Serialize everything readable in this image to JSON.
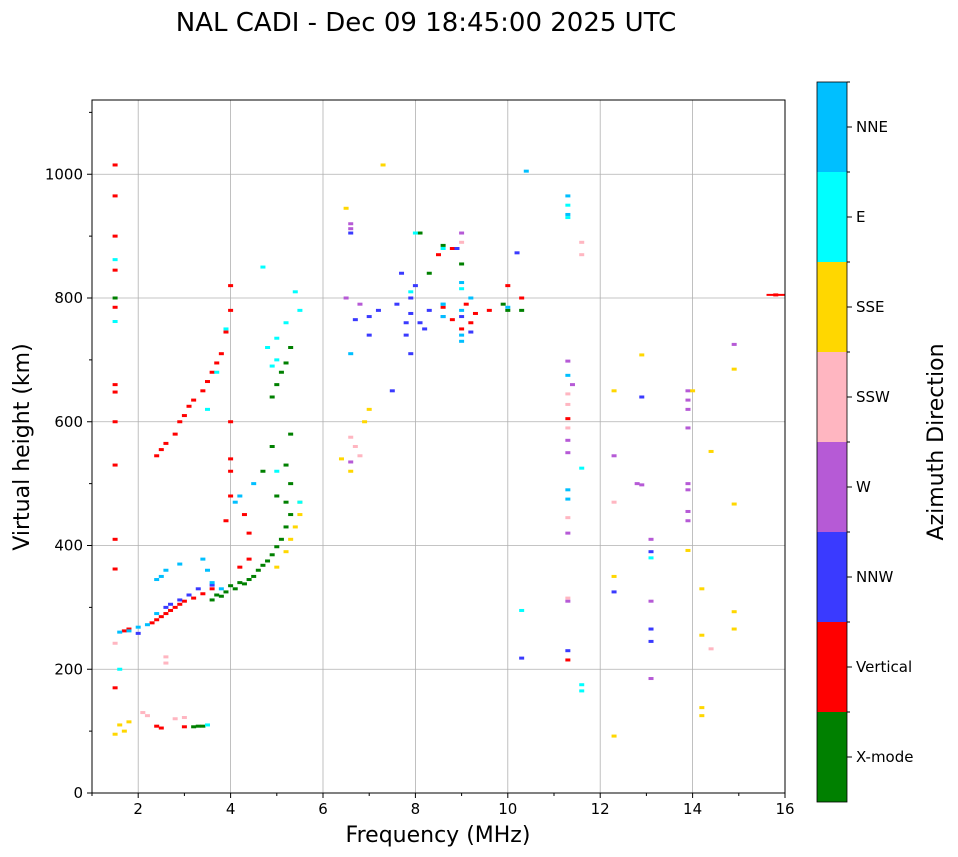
{
  "chart_data": {
    "type": "scatter",
    "title": "NAL CADI - Dec 09 18:45:00 2025 UTC",
    "xlabel": "Frequency (MHz)",
    "ylabel": "Virtual height (km)",
    "xlim": [
      1,
      16
    ],
    "ylim": [
      0,
      1120
    ],
    "xticks": [
      2,
      4,
      6,
      8,
      10,
      12,
      14,
      16
    ],
    "yticks": [
      0,
      200,
      400,
      600,
      800,
      1000
    ],
    "grid": true,
    "colorbar": {
      "label": "Azimuth Direction",
      "categories": [
        {
          "name": "X-mode",
          "color": "#008000"
        },
        {
          "name": "Vertical",
          "color": "#ff0000"
        },
        {
          "name": "NNW",
          "color": "#3a3aff"
        },
        {
          "name": "W",
          "color": "#b65ad6"
        },
        {
          "name": "SSW",
          "color": "#ffb6c1"
        },
        {
          "name": "SSE",
          "color": "#ffd700"
        },
        {
          "name": "E",
          "color": "#00ffff"
        },
        {
          "name": "NNE",
          "color": "#00bfff"
        }
      ]
    },
    "series": [
      {
        "name": "X-mode",
        "points": [
          [
            3.2,
            107
          ],
          [
            3.3,
            108
          ],
          [
            3.4,
            108
          ],
          [
            3.6,
            312
          ],
          [
            3.7,
            320
          ],
          [
            3.8,
            318
          ],
          [
            3.9,
            325
          ],
          [
            4.0,
            335
          ],
          [
            4.1,
            330
          ],
          [
            4.2,
            340
          ],
          [
            4.3,
            338
          ],
          [
            4.4,
            345
          ],
          [
            4.5,
            350
          ],
          [
            4.6,
            360
          ],
          [
            4.7,
            368
          ],
          [
            4.8,
            375
          ],
          [
            4.9,
            385
          ],
          [
            5.0,
            398
          ],
          [
            5.1,
            410
          ],
          [
            5.2,
            430
          ],
          [
            5.3,
            450
          ],
          [
            5.2,
            470
          ],
          [
            5.3,
            500
          ],
          [
            4.7,
            520
          ],
          [
            5.0,
            480
          ],
          [
            5.2,
            530
          ],
          [
            4.9,
            560
          ],
          [
            5.3,
            580
          ],
          [
            4.9,
            640
          ],
          [
            5.0,
            660
          ],
          [
            5.1,
            680
          ],
          [
            5.2,
            695
          ],
          [
            5.3,
            720
          ],
          [
            1.5,
            800
          ],
          [
            8.1,
            905
          ],
          [
            8.6,
            885
          ],
          [
            9.0,
            855
          ],
          [
            10.0,
            780
          ],
          [
            10.3,
            780
          ],
          [
            9.9,
            790
          ],
          [
            8.3,
            840
          ]
        ]
      },
      {
        "name": "Vertical",
        "points": [
          [
            1.5,
            1015
          ],
          [
            1.5,
            965
          ],
          [
            1.5,
            900
          ],
          [
            1.5,
            845
          ],
          [
            1.5,
            785
          ],
          [
            1.5,
            660
          ],
          [
            1.5,
            648
          ],
          [
            1.5,
            600
          ],
          [
            1.5,
            530
          ],
          [
            1.5,
            410
          ],
          [
            1.5,
            362
          ],
          [
            1.5,
            170
          ],
          [
            1.7,
            262
          ],
          [
            1.8,
            265
          ],
          [
            2.3,
            275
          ],
          [
            2.4,
            280
          ],
          [
            2.5,
            285
          ],
          [
            2.6,
            290
          ],
          [
            2.7,
            295
          ],
          [
            2.8,
            300
          ],
          [
            2.9,
            305
          ],
          [
            3.0,
            310
          ],
          [
            3.2,
            315
          ],
          [
            3.4,
            322
          ],
          [
            3.6,
            330
          ],
          [
            2.4,
            545
          ],
          [
            2.5,
            555
          ],
          [
            2.6,
            565
          ],
          [
            2.8,
            580
          ],
          [
            2.9,
            600
          ],
          [
            3.0,
            610
          ],
          [
            3.1,
            625
          ],
          [
            3.2,
            635
          ],
          [
            3.4,
            650
          ],
          [
            3.5,
            665
          ],
          [
            3.6,
            680
          ],
          [
            3.7,
            695
          ],
          [
            3.8,
            710
          ],
          [
            3.9,
            745
          ],
          [
            4.0,
            780
          ],
          [
            4.0,
            820
          ],
          [
            3.9,
            440
          ],
          [
            4.0,
            480
          ],
          [
            4.0,
            520
          ],
          [
            4.0,
            540
          ],
          [
            4.3,
            450
          ],
          [
            4.4,
            420
          ],
          [
            4.0,
            600
          ],
          [
            4.2,
            365
          ],
          [
            4.4,
            378
          ],
          [
            2.5,
            105
          ],
          [
            3.0,
            107
          ],
          [
            2.4,
            108
          ],
          [
            8.6,
            785
          ],
          [
            8.8,
            765
          ],
          [
            9.0,
            750
          ],
          [
            9.1,
            790
          ],
          [
            9.3,
            775
          ],
          [
            9.6,
            780
          ],
          [
            10.0,
            820
          ],
          [
            10.3,
            800
          ],
          [
            9.2,
            760
          ],
          [
            8.5,
            870
          ],
          [
            8.8,
            880
          ],
          [
            11.3,
            605
          ],
          [
            11.3,
            215
          ],
          [
            15.8,
            805
          ]
        ]
      },
      {
        "name": "NNW",
        "points": [
          [
            2.0,
            258
          ],
          [
            2.6,
            300
          ],
          [
            2.7,
            305
          ],
          [
            2.9,
            312
          ],
          [
            3.1,
            320
          ],
          [
            3.3,
            330
          ],
          [
            3.6,
            336
          ],
          [
            7.9,
            775
          ],
          [
            7.8,
            760
          ],
          [
            7.7,
            840
          ],
          [
            7.9,
            800
          ],
          [
            8.0,
            820
          ],
          [
            8.1,
            760
          ],
          [
            7.6,
            790
          ],
          [
            7.8,
            740
          ],
          [
            7.9,
            710
          ],
          [
            8.2,
            750
          ],
          [
            7.2,
            780
          ],
          [
            7.0,
            770
          ],
          [
            6.7,
            765
          ],
          [
            8.3,
            780
          ],
          [
            8.6,
            770
          ],
          [
            9.0,
            770
          ],
          [
            9.2,
            745
          ],
          [
            7.0,
            740
          ],
          [
            8.9,
            880
          ],
          [
            7.5,
            650
          ],
          [
            11.3,
            230
          ],
          [
            12.3,
            325
          ],
          [
            12.9,
            640
          ],
          [
            13.1,
            390
          ],
          [
            13.1,
            265
          ],
          [
            13.1,
            245
          ],
          [
            6.6,
            905
          ],
          [
            10.3,
            218
          ],
          [
            10.2,
            873
          ]
        ]
      },
      {
        "name": "W",
        "points": [
          [
            6.6,
            920
          ],
          [
            6.6,
            912
          ],
          [
            6.5,
            800
          ],
          [
            6.8,
            790
          ],
          [
            6.6,
            535
          ],
          [
            11.3,
            698
          ],
          [
            11.4,
            660
          ],
          [
            11.3,
            570
          ],
          [
            11.3,
            550
          ],
          [
            11.3,
            420
          ],
          [
            11.3,
            310
          ],
          [
            12.3,
            545
          ],
          [
            12.8,
            500
          ],
          [
            12.9,
            498
          ],
          [
            13.1,
            410
          ],
          [
            13.1,
            310
          ],
          [
            13.1,
            185
          ],
          [
            13.9,
            650
          ],
          [
            13.9,
            635
          ],
          [
            13.9,
            620
          ],
          [
            13.9,
            590
          ],
          [
            13.9,
            500
          ],
          [
            13.9,
            490
          ],
          [
            13.9,
            455
          ],
          [
            13.9,
            440
          ],
          [
            14.9,
            725
          ],
          [
            9.0,
            905
          ]
        ]
      },
      {
        "name": "SSW",
        "points": [
          [
            1.5,
            242
          ],
          [
            2.1,
            130
          ],
          [
            2.2,
            125
          ],
          [
            2.6,
            220
          ],
          [
            2.6,
            210
          ],
          [
            2.8,
            120
          ],
          [
            3.0,
            122
          ],
          [
            6.6,
            575
          ],
          [
            6.7,
            560
          ],
          [
            6.8,
            545
          ],
          [
            11.3,
            628
          ],
          [
            11.3,
            645
          ],
          [
            11.3,
            590
          ],
          [
            11.3,
            445
          ],
          [
            11.3,
            315
          ],
          [
            11.6,
            890
          ],
          [
            11.6,
            870
          ],
          [
            12.3,
            470
          ],
          [
            14.4,
            233
          ],
          [
            9.0,
            890
          ]
        ]
      },
      {
        "name": "SSE",
        "points": [
          [
            1.5,
            95
          ],
          [
            1.6,
            110
          ],
          [
            1.7,
            100
          ],
          [
            1.8,
            115
          ],
          [
            5.0,
            365
          ],
          [
            5.2,
            390
          ],
          [
            5.3,
            410
          ],
          [
            5.4,
            430
          ],
          [
            5.5,
            450
          ],
          [
            5.5,
            470
          ],
          [
            6.5,
            945
          ],
          [
            6.4,
            540
          ],
          [
            6.6,
            520
          ],
          [
            6.9,
            600
          ],
          [
            7.0,
            620
          ],
          [
            7.3,
            1015
          ],
          [
            12.3,
            650
          ],
          [
            12.3,
            350
          ],
          [
            12.3,
            92
          ],
          [
            12.9,
            708
          ],
          [
            14.0,
            650
          ],
          [
            14.2,
            330
          ],
          [
            14.2,
            255
          ],
          [
            14.2,
            138
          ],
          [
            14.2,
            125
          ],
          [
            14.4,
            552
          ],
          [
            14.9,
            685
          ],
          [
            14.9,
            467
          ],
          [
            14.9,
            293
          ],
          [
            14.9,
            265
          ],
          [
            13.9,
            392
          ]
        ]
      },
      {
        "name": "E",
        "points": [
          [
            1.5,
            862
          ],
          [
            1.5,
            762
          ],
          [
            1.6,
            200
          ],
          [
            3.5,
            110
          ],
          [
            3.5,
            620
          ],
          [
            3.7,
            680
          ],
          [
            3.9,
            750
          ],
          [
            4.7,
            850
          ],
          [
            4.8,
            720
          ],
          [
            5.0,
            735
          ],
          [
            5.2,
            760
          ],
          [
            5.5,
            780
          ],
          [
            5.4,
            810
          ],
          [
            5.0,
            700
          ],
          [
            4.9,
            690
          ],
          [
            5.5,
            470
          ],
          [
            5.0,
            520
          ],
          [
            10.3,
            295
          ],
          [
            11.3,
            930
          ],
          [
            11.3,
            950
          ],
          [
            11.6,
            525
          ],
          [
            11.6,
            175
          ],
          [
            11.6,
            165
          ],
          [
            13.1,
            380
          ],
          [
            7.9,
            810
          ],
          [
            8.6,
            880
          ],
          [
            9.0,
            815
          ],
          [
            8.0,
            905
          ]
        ]
      },
      {
        "name": "NNE",
        "points": [
          [
            1.6,
            260
          ],
          [
            1.8,
            262
          ],
          [
            2.0,
            268
          ],
          [
            2.2,
            272
          ],
          [
            2.4,
            290
          ],
          [
            2.4,
            345
          ],
          [
            2.5,
            350
          ],
          [
            2.6,
            360
          ],
          [
            2.9,
            370
          ],
          [
            3.4,
            378
          ],
          [
            3.5,
            360
          ],
          [
            3.6,
            340
          ],
          [
            3.8,
            330
          ],
          [
            4.1,
            470
          ],
          [
            4.2,
            480
          ],
          [
            4.5,
            500
          ],
          [
            8.6,
            790
          ],
          [
            8.6,
            770
          ],
          [
            9.0,
            780
          ],
          [
            9.0,
            825
          ],
          [
            9.0,
            740
          ],
          [
            9.2,
            800
          ],
          [
            10.0,
            785
          ],
          [
            10.4,
            1005
          ],
          [
            11.3,
            965
          ],
          [
            11.3,
            935
          ],
          [
            11.3,
            675
          ],
          [
            11.3,
            490
          ],
          [
            11.3,
            475
          ],
          [
            6.6,
            710
          ],
          [
            8.6,
            790
          ],
          [
            9.0,
            730
          ]
        ]
      }
    ]
  }
}
